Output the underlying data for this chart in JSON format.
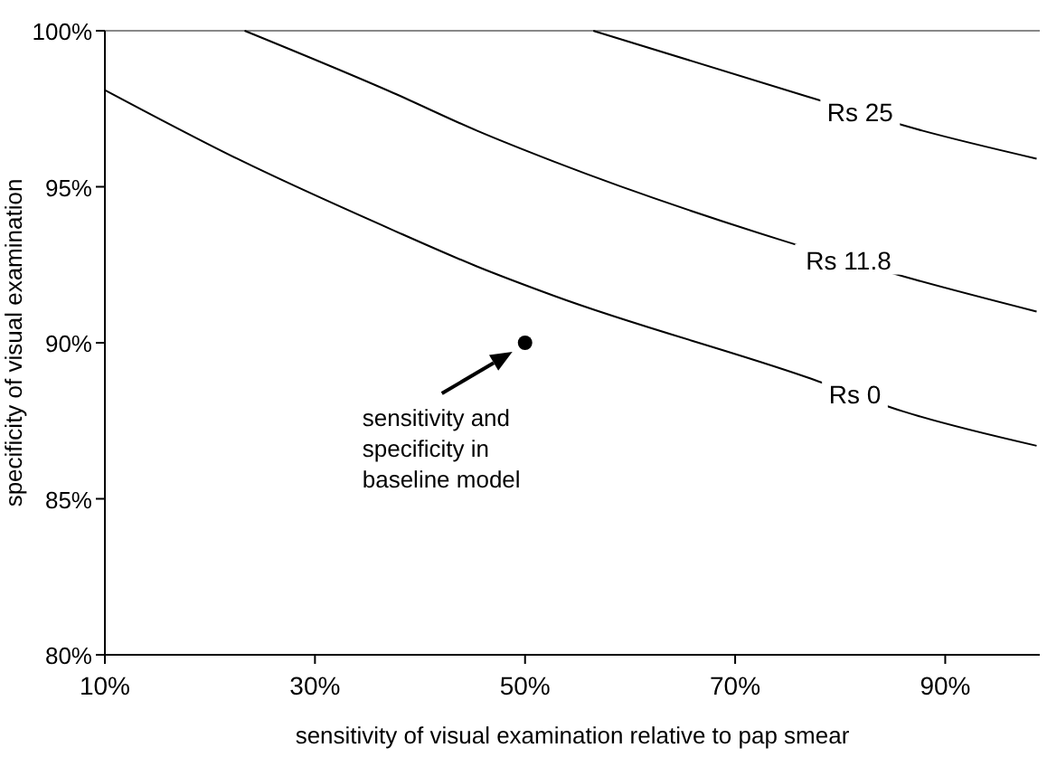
{
  "chart_data": {
    "type": "line",
    "xlabel": "sensitivity of visual examination relative to pap smear",
    "ylabel": "specificity of visual examination",
    "xlim": [
      10,
      99
    ],
    "ylim": [
      80,
      100
    ],
    "xticks": [
      {
        "value": 10,
        "label": "10%"
      },
      {
        "value": 30,
        "label": "30%"
      },
      {
        "value": 50,
        "label": "50%"
      },
      {
        "value": 70,
        "label": "70%"
      },
      {
        "value": 90,
        "label": "90%"
      }
    ],
    "yticks": [
      {
        "value": 80,
        "label": "80%"
      },
      {
        "value": 85,
        "label": "85%"
      },
      {
        "value": 90,
        "label": "90%"
      },
      {
        "value": 95,
        "label": "95%"
      },
      {
        "value": 100,
        "label": "100%"
      }
    ],
    "grid": false,
    "marker": "none",
    "line_style": "solid",
    "series": [
      {
        "name": "Rs 0",
        "color": "#000000",
        "x": [
          10,
          22.6,
          37.5,
          45.4,
          52.8,
          76.8,
          86,
          98.7
        ],
        "values": [
          98.1,
          95.9,
          93.6,
          92.45,
          91.5,
          88.9,
          87.8,
          86.7
        ]
      },
      {
        "name": "Rs 11.8",
        "color": "#000000",
        "x": [
          23.3,
          37.5,
          45.4,
          52.8,
          74.3,
          86.3,
          98.7
        ],
        "values": [
          100,
          98,
          96.8,
          95.8,
          93.3,
          92.1,
          91
        ]
      },
      {
        "name": "Rs 25",
        "color": "#000000",
        "x": [
          56.5,
          76.8,
          87.8,
          98.7
        ],
        "values": [
          100,
          97.9,
          96.8,
          95.9
        ]
      },
      {
        "type": "scatter",
        "marker": "circle",
        "color": "#000000",
        "x": [
          50
        ],
        "values": [
          90
        ]
      }
    ],
    "annotations": [
      {
        "text": "sensitivity and\nspecificity in\nbaseline model",
        "x": 50,
        "y": 90
      }
    ]
  }
}
